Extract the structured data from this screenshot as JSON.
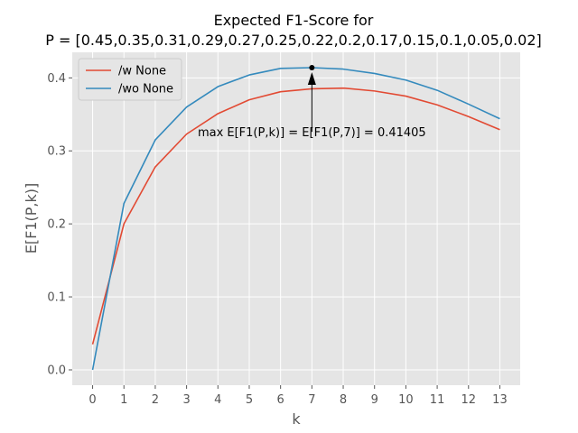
{
  "chart_data": {
    "type": "line",
    "title_lines": [
      "Expected F1-Score for",
      "P = [0.45,0.35,0.31,0.29,0.27,0.25,0.22,0.2,0.17,0.15,0.1,0.05,0.02]"
    ],
    "xlabel": "k",
    "ylabel": "E[F1(P,k)]",
    "x": [
      0,
      1,
      2,
      3,
      4,
      5,
      6,
      7,
      8,
      9,
      10,
      11,
      12,
      13
    ],
    "x_ticks": [
      "0",
      "1",
      "2",
      "3",
      "4",
      "5",
      "6",
      "7",
      "8",
      "9",
      "10",
      "11",
      "12",
      "13"
    ],
    "y_ticks": [
      "0.0",
      "0.1",
      "0.2",
      "0.3",
      "0.4"
    ],
    "xlim": [
      -0.65,
      13.65
    ],
    "ylim": [
      -0.021,
      0.435
    ],
    "grid": true,
    "legend_position": "top-left",
    "series": [
      {
        "name": "/w None",
        "color": "#E24A33",
        "values": [
          0.035,
          0.2,
          0.278,
          0.323,
          0.351,
          0.37,
          0.381,
          0.385,
          0.386,
          0.382,
          0.375,
          0.363,
          0.347,
          0.329
        ]
      },
      {
        "name": "/wo None",
        "color": "#348ABD",
        "values": [
          0.0,
          0.228,
          0.315,
          0.36,
          0.388,
          0.404,
          0.413,
          0.414,
          0.412,
          0.406,
          0.397,
          0.383,
          0.364,
          0.344
        ]
      }
    ],
    "annotation": {
      "text": "max E[F1(P,k)] = E[F1(P,7)] = 0.41405",
      "point_x": 7,
      "point_y": 0.41405,
      "text_x": 7,
      "text_y": 0.31
    }
  }
}
